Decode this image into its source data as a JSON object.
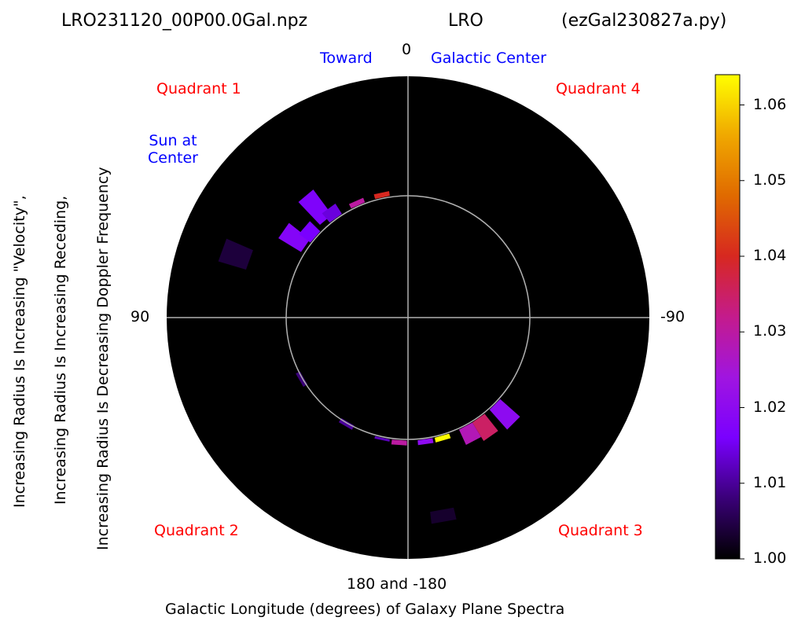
{
  "header": {
    "file": "LRO231120_00P00.0Gal.npz",
    "station": "LRO",
    "script": "(ezGal230827a.py)"
  },
  "labels": {
    "toward": "Toward",
    "galactic_center": "Galactic Center",
    "sun_line1": "Sun at",
    "sun_line2": "Center",
    "q1": "Quadrant 1",
    "q2": "Quadrant 2",
    "q3": "Quadrant 3",
    "q4": "Quadrant 4"
  },
  "chart_data": {
    "type": "heatmap",
    "subtype": "polar",
    "xlabel": "Galactic Longitude (degrees) of Galaxy Plane Spectra",
    "ylabel_lines": [
      "Increasing Radius Is Increasing \"Velocity\",",
      "Increasing Radius Is Increasing Receding,",
      "Increasing Radius Is Decreasing Doppler Frequency"
    ],
    "angle_labels": {
      "top": "0",
      "left": "90",
      "right": "-90",
      "bottom": "180 and -180"
    },
    "inner_circle_fraction": 0.505,
    "grid": true,
    "colormap": "gnuplot",
    "colorbar": {
      "ticks": [
        "1.06",
        "1.05",
        "1.04",
        "1.03",
        "1.02",
        "1.01",
        "1.00"
      ],
      "min": 1.0,
      "max": 1.064,
      "stops": [
        "#000000",
        "#3a0078",
        "#7a00ff",
        "#a015e0",
        "#c41b8c",
        "#d72820",
        "#e06a00",
        "#f0a800",
        "#ffff00"
      ]
    },
    "wedges": [
      {
        "lon": 70,
        "r0": 0.7,
        "r1": 0.82,
        "value": 1.004
      },
      {
        "lon": 55,
        "r0": 0.52,
        "r1": 0.63,
        "value": 1.018
      },
      {
        "lon": 49,
        "r0": 0.51,
        "r1": 0.57,
        "value": 1.016
      },
      {
        "lon": 40,
        "r0": 0.53,
        "r1": 0.66,
        "value": 1.017
      },
      {
        "lon": 36,
        "r0": 0.51,
        "r1": 0.56,
        "value": 1.014
      },
      {
        "lon": 24,
        "r0": 0.51,
        "r1": 0.53,
        "value": 1.03
      },
      {
        "lon": 12,
        "r0": 0.51,
        "r1": 0.53,
        "value": 1.04
      },
      {
        "lon": -135,
        "r0": 0.51,
        "r1": 0.62,
        "value": 1.02
      },
      {
        "lon": -145,
        "r0": 0.51,
        "r1": 0.6,
        "value": 1.035
      },
      {
        "lon": -152,
        "r0": 0.51,
        "r1": 0.58,
        "value": 1.028
      },
      {
        "lon": -164,
        "r0": 0.51,
        "r1": 0.53,
        "value": 1.064
      },
      {
        "lon": -172,
        "r0": 0.51,
        "r1": 0.53,
        "value": 1.02
      },
      {
        "lon": 176,
        "r0": 0.51,
        "r1": 0.53,
        "value": 1.03
      },
      {
        "lon": 168,
        "r0": 0.51,
        "r1": 0.52,
        "value": 1.012
      },
      {
        "lon": 150,
        "r0": 0.5,
        "r1": 0.52,
        "value": 1.01
      },
      {
        "lon": 120,
        "r0": 0.5,
        "r1": 0.52,
        "value": 1.008
      },
      {
        "lon": -170,
        "r0": 0.81,
        "r1": 0.86,
        "value": 1.003
      }
    ]
  }
}
